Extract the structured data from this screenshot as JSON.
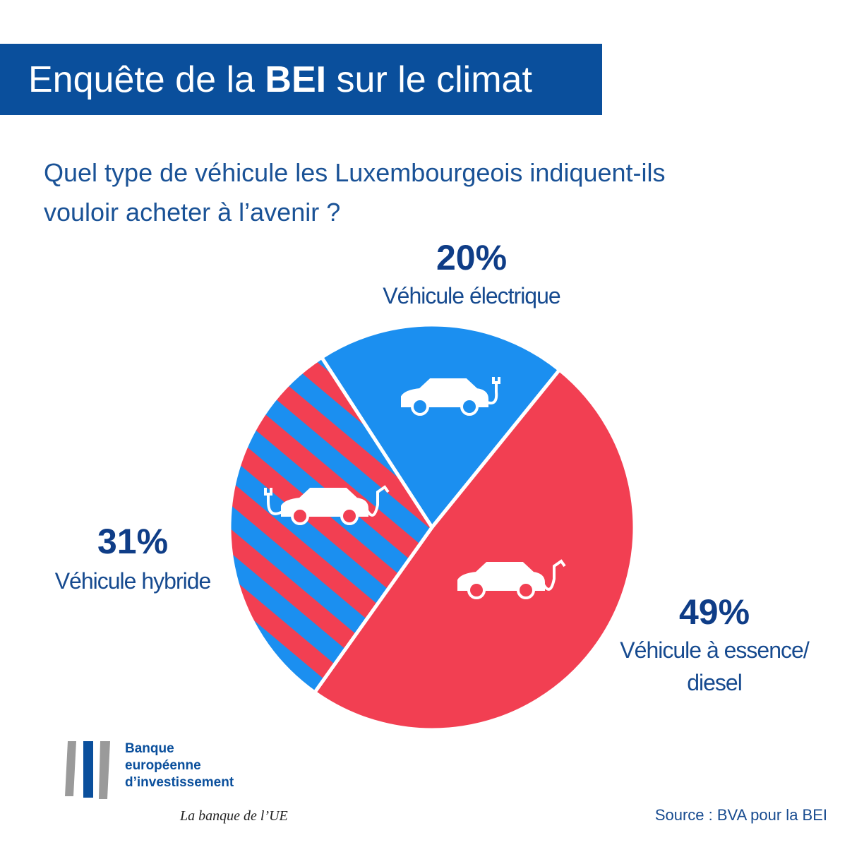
{
  "chart_data": {
    "type": "pie",
    "title": [
      "Enquête de la ",
      "BEI",
      " sur le climat"
    ],
    "subtitle": [
      "Quel type de véhicule les Luxembourgeois indiquent-ils",
      "vouloir acheter à l’avenir ?"
    ],
    "categories": [
      "Véhicule électrique",
      "Véhicule à essence/ diesel",
      "Véhicule hybride"
    ],
    "values": [
      20,
      49,
      31
    ],
    "value_labels": [
      "20%",
      "49%",
      "31%"
    ],
    "colors": [
      "#1b8ff0",
      "#f23f52",
      [
        "#f23f52",
        "#1b8ff0"
      ]
    ],
    "source": "Source : BVA pour la BEI"
  },
  "logo": {
    "lines": [
      "Banque",
      "européenne",
      "d’investissement"
    ],
    "tagline": "La banque de l’UE"
  }
}
